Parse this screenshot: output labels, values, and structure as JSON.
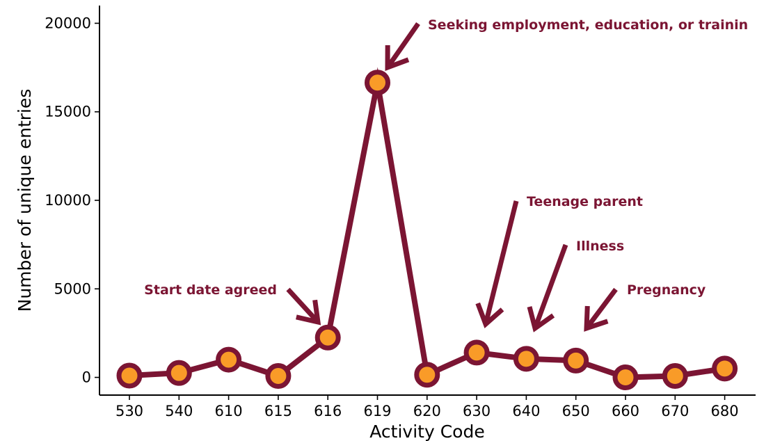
{
  "chart_data": {
    "type": "line",
    "title": "",
    "xlabel": "Activity Code",
    "ylabel": "Number of unique entries",
    "categories": [
      "530",
      "540",
      "610",
      "615",
      "616",
      "619",
      "620",
      "630",
      "640",
      "650",
      "660",
      "670",
      "680"
    ],
    "series": [
      {
        "values": [
          100,
          250,
          1000,
          80,
          2250,
          16650,
          150,
          1400,
          1050,
          950,
          0,
          80,
          500
        ]
      }
    ],
    "ylim": [
      -1000,
      21000
    ],
    "yticks": [
      0,
      5000,
      10000,
      15000,
      20000
    ],
    "grid": false,
    "legend": "none",
    "annotations": [
      {
        "text": "Start date agreed",
        "category": "616"
      },
      {
        "text": "Seeking employment, education, or trainin",
        "category": "619"
      },
      {
        "text": "Teenage parent",
        "category": "630"
      },
      {
        "text": "Illness",
        "category": "640"
      },
      {
        "text": "Pregnancy",
        "category": "650"
      }
    ],
    "colors": {
      "line": "#7b1533",
      "marker_fill": "#f99b28",
      "annotation": "#7b1533",
      "axis": "#000000"
    }
  }
}
